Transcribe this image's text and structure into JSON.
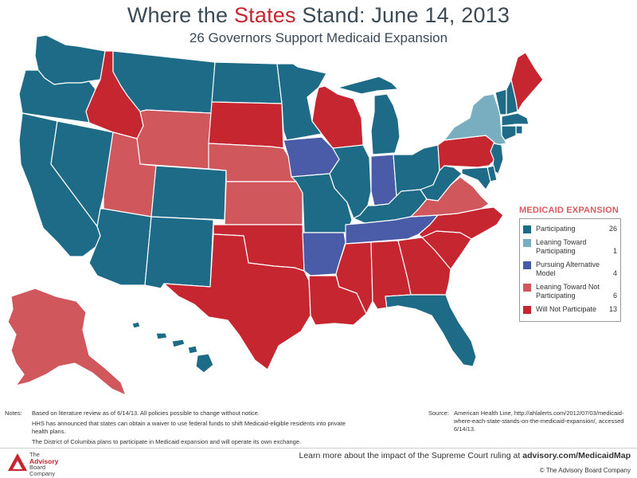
{
  "title": {
    "prefix": "Where the ",
    "highlight": "States",
    "suffix": " Stand: June 14, 2013"
  },
  "subtitle": "26 Governors Support Medicaid Expansion",
  "colors": {
    "participating": "#1d6b86",
    "leaning_toward_participating": "#79aec0",
    "pursuing_alternative_model": "#4a5ba8",
    "leaning_toward_not_participating": "#d0585c",
    "will_not_participate": "#c52630",
    "title_accent": "#c52630"
  },
  "legend": {
    "title": "MEDICAID EXPANSION",
    "items": [
      {
        "key": "participating",
        "label": "Participating",
        "count": "26"
      },
      {
        "key": "leaning_toward_participating",
        "label": "Leaning Toward Participating",
        "count": "1"
      },
      {
        "key": "pursuing_alternative_model",
        "label": "Pursuing Alternative Model",
        "count": "4"
      },
      {
        "key": "leaning_toward_not_participating",
        "label": "Leaning Toward Not Participating",
        "count": "6"
      },
      {
        "key": "will_not_participate",
        "label": "Will Not Participate",
        "count": "13"
      }
    ]
  },
  "notes": {
    "label": "Notes:",
    "lines": [
      "Based on literature review as of 6/14/13. All policies possible to change without notice.",
      "HHS has announced that states can obtain a waiver to use federal funds to shift Medicaid-eligible residents into private health plans.",
      "The District of Columbia plans to participate in Medicaid expansion and will operate its own exchange."
    ]
  },
  "source": {
    "label": "Source:",
    "text": "American Health Line, http://ahlalerts.com/2012/07/03/medicaid-where-each-state-stands-on-the-medicaid-expansion/, accessed 6/14/13."
  },
  "footer": {
    "logo_lines": [
      "The",
      "Advisory",
      "Board",
      "Company"
    ],
    "learn_more_prefix": "Learn more about the impact of the Supreme Court ruling at ",
    "learn_more_link": "advisory.com/MedicaidMap",
    "copyright": "© The Advisory Board Company"
  },
  "states": {
    "WA": "participating",
    "OR": "participating",
    "CA": "participating",
    "NV": "participating",
    "ID": "will_not_participate",
    "MT": "participating",
    "WY": "leaning_toward_not_participating",
    "UT": "leaning_toward_not_participating",
    "AZ": "participating",
    "CO": "participating",
    "NM": "participating",
    "ND": "participating",
    "SD": "will_not_participate",
    "NE": "leaning_toward_not_participating",
    "KS": "leaning_toward_not_participating",
    "OK": "will_not_participate",
    "TX": "will_not_participate",
    "MN": "participating",
    "IA": "pursuing_alternative_model",
    "MO": "participating",
    "AR": "pursuing_alternative_model",
    "LA": "will_not_participate",
    "WI": "will_not_participate",
    "IL": "participating",
    "MI": "participating",
    "IN": "pursuing_alternative_model",
    "OH": "participating",
    "KY": "participating",
    "TN": "pursuing_alternative_model",
    "MS": "will_not_participate",
    "AL": "will_not_participate",
    "GA": "will_not_participate",
    "FL": "participating",
    "SC": "will_not_participate",
    "NC": "will_not_participate",
    "VA": "leaning_toward_not_participating",
    "WV": "participating",
    "PA": "will_not_participate",
    "NY": "leaning_toward_participating",
    "VT": "participating",
    "NH": "participating",
    "ME": "will_not_participate",
    "MA": "participating",
    "RI": "participating",
    "CT": "participating",
    "NJ": "participating",
    "DE": "participating",
    "MD": "participating",
    "AK": "leaning_toward_not_participating",
    "HI": "participating"
  }
}
